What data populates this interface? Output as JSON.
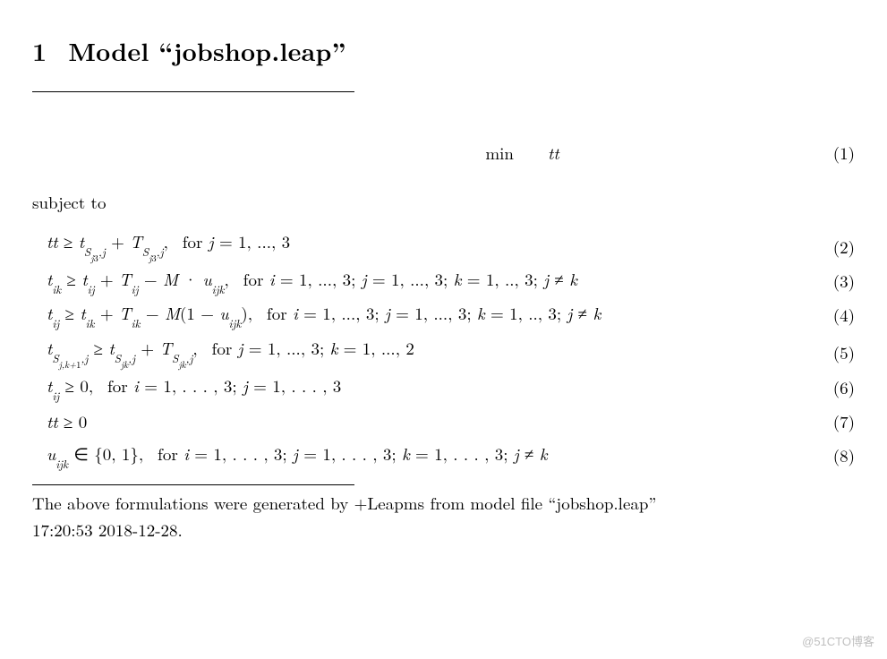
{
  "heading": {
    "number": "1",
    "title": "Model “jobshop.leap”"
  },
  "objective": {
    "label": "min",
    "expr": "tt",
    "num": "(1)"
  },
  "subject_to": "subject to",
  "equations": [
    {
      "html": "<span class='math'>tt</span> ≥ <span class='math'>t</span><sub>S<sub>j<span class='rm'>3</span></sub>,<span class='math'>j</span></sub> + <span class='math'>T</span><sub>S<sub>j<span class='rm'>3</span></sub>,<span class='math'>j</span></sub>,&nbsp; <span class='rm'>for</span> <span class='math'>j</span> = 1, ..., 3",
      "num": "(2)"
    },
    {
      "html": "<span class='math'>t</span><sub>ik</sub> ≥ <span class='math'>t</span><sub>ij</sub> + <span class='math'>T</span><sub>ij</sub> − <span class='math'>M</span> · <span class='math'>u</span><sub>ijk</sub>,&nbsp; <span class='rm'>for</span> <span class='math'>i</span> = 1, ..., 3; <span class='math'>j</span> = 1, ..., 3; <span class='math'>k</span> = 1, .., 3; <span class='math'>j</span> ≠ <span class='math'>k</span>",
      "num": "(3)"
    },
    {
      "html": "<span class='math'>t</span><sub>ij</sub> ≥ <span class='math'>t</span><sub>ik</sub> + <span class='math'>T</span><sub>ik</sub> − <span class='math'>M</span>(1 − <span class='math'>u</span><sub>ijk</sub>),&nbsp; <span class='rm'>for</span> <span class='math'>i</span> = 1, ..., 3; <span class='math'>j</span> = 1, ..., 3; <span class='math'>k</span> = 1, .., 3; <span class='math'>j</span> ≠ <span class='math'>k</span>",
      "num": "(4)"
    },
    {
      "html": "<span class='math'>t</span><sub>S<sub>j,k+<span class='rm'>1</span></sub>,<span class='math'>j</span></sub> ≥ <span class='math'>t</span><sub>S<sub>jk</sub>,<span class='math'>j</span></sub> + <span class='math'>T</span><sub>S<sub>jk</sub>,<span class='math'>j</span></sub>,&nbsp; <span class='rm'>for</span> <span class='math'>j</span> = 1, ..., 3; <span class='math'>k</span> = 1, ..., 2",
      "num": "(5)"
    },
    {
      "html": "<span class='math'>t</span><sub>ij</sub> ≥ 0,&nbsp; <span class='rm'>for</span> <span class='math'>i</span> = 1, . . . , 3; <span class='math'>j</span> = 1, . . . , 3",
      "num": "(6)"
    },
    {
      "html": "<span class='math'>tt</span> ≥ 0",
      "num": "(7)"
    },
    {
      "html": "<span class='math'>u</span><sub>ijk</sub> ∈ {0, 1},&nbsp; <span class='rm'>for</span> <span class='math'>i</span> = 1, . . . , 3; <span class='math'>j</span> = 1, . . . , 3; <span class='math'>k</span> = 1, . . . , 3; <span class='math'>j</span> ≠ <span class='math'>k</span>",
      "num": "(8)"
    }
  ],
  "footnote": {
    "line1": "The above formulations were generated by +Leapms from model file “jobshop.leap”",
    "line2": "17:20:53 2018-12-28."
  },
  "watermark": "@51CTO博客"
}
